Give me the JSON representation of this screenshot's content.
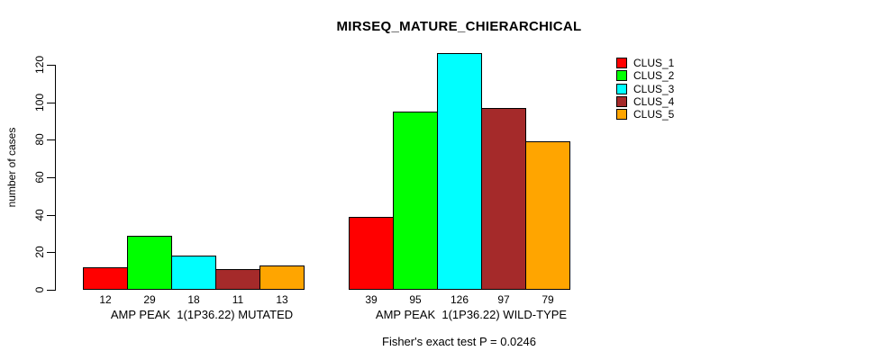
{
  "chart_data": {
    "type": "bar",
    "title": "MIRSEQ_MATURE_CHIERARCHICAL",
    "ylabel": "number of cases",
    "xlabel": "",
    "ylim": [
      0,
      130
    ],
    "yticks": [
      0,
      20,
      40,
      60,
      80,
      100,
      120
    ],
    "grid": false,
    "legend_position": "top-right-inside",
    "bar_value_labels": true,
    "bar_border_color": "#000000",
    "categories": [
      "AMP PEAK  1(1P36.22) MUTATED",
      "AMP PEAK  1(1P36.22) WILD-TYPE"
    ],
    "series": [
      {
        "name": "CLUS_1",
        "color": "#ff0000",
        "values": [
          12,
          39
        ]
      },
      {
        "name": "CLUS_2",
        "color": "#00ff00",
        "values": [
          29,
          95
        ]
      },
      {
        "name": "CLUS_3",
        "color": "#00ffff",
        "values": [
          18,
          126
        ]
      },
      {
        "name": "CLUS_4",
        "color": "#a52a2a",
        "values": [
          11,
          97
        ]
      },
      {
        "name": "CLUS_5",
        "color": "#ffa500",
        "values": [
          13,
          79
        ]
      }
    ],
    "annotation": "Fisher's exact test P = 0.0246"
  }
}
